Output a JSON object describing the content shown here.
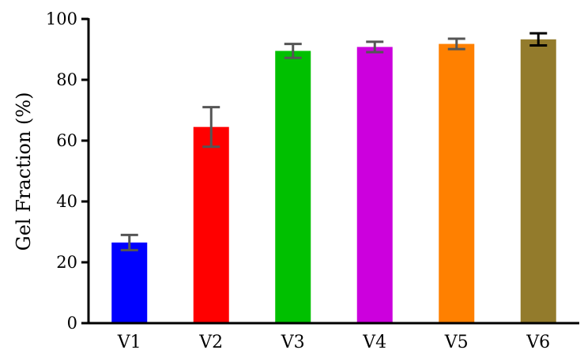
{
  "chart_data": {
    "type": "bar",
    "title": "",
    "xlabel": "",
    "ylabel": "Gel Fraction (%)",
    "ylim": [
      0,
      100
    ],
    "yticks": [
      0,
      20,
      40,
      60,
      80,
      100
    ],
    "categories": [
      "V1",
      "V2",
      "V3",
      "V4",
      "V5",
      "V6"
    ],
    "values": [
      26.5,
      64.5,
      89.5,
      90.8,
      91.8,
      93.3
    ],
    "errors": [
      2.5,
      6.5,
      2.3,
      1.7,
      1.7,
      2.0
    ],
    "colors": [
      "#0000ff",
      "#ff0000",
      "#00c000",
      "#cc00dd",
      "#ff8000",
      "#937b2c"
    ],
    "error_colors": [
      "#555555",
      "#555555",
      "#555555",
      "#555555",
      "#555555",
      "#000000"
    ],
    "grid": false,
    "legend": "none"
  }
}
